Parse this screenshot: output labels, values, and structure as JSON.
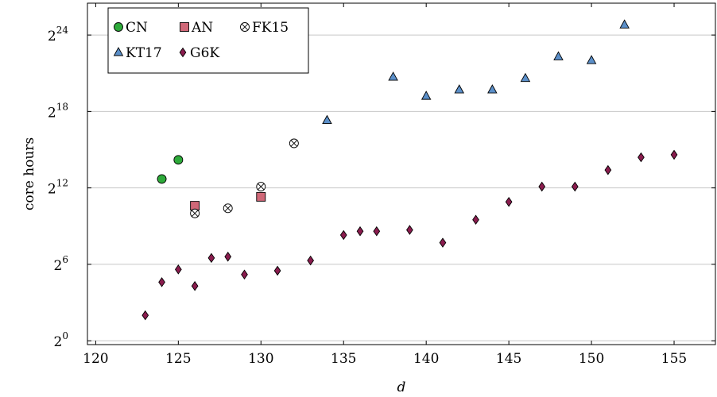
{
  "chart_data": {
    "type": "scatter",
    "title": "",
    "xlabel": "d",
    "ylabel": "core hours",
    "x_scale": "linear",
    "y_scale": "log2",
    "xlim": [
      119.5,
      157.5
    ],
    "ylim_log2": [
      -0.3,
      26.5
    ],
    "x_ticks": [
      120,
      125,
      130,
      135,
      140,
      145,
      150,
      155
    ],
    "y_ticks": [
      {
        "base": "2",
        "exp": "0",
        "value_log2": 0
      },
      {
        "base": "2",
        "exp": "6",
        "value_log2": 6
      },
      {
        "base": "2",
        "exp": "12",
        "value_log2": 12
      },
      {
        "base": "2",
        "exp": "18",
        "value_log2": 18
      },
      {
        "base": "2",
        "exp": "24",
        "value_log2": 24
      }
    ],
    "grid": "horizontal",
    "legend_position": "top-left",
    "series": [
      {
        "name": "CN",
        "marker": "circle",
        "fill": "#2eaa3a",
        "points": [
          {
            "x": 124,
            "y_log2": 12.7
          },
          {
            "x": 125,
            "y_log2": 14.2
          }
        ]
      },
      {
        "name": "AN",
        "marker": "square",
        "fill": "#d06878",
        "points": [
          {
            "x": 126,
            "y_log2": 10.6
          },
          {
            "x": 130,
            "y_log2": 11.3
          }
        ]
      },
      {
        "name": "FK15",
        "marker": "circled-x",
        "fill": "#ffffff",
        "points": [
          {
            "x": 126,
            "y_log2": 10.0
          },
          {
            "x": 128,
            "y_log2": 10.4
          },
          {
            "x": 130,
            "y_log2": 12.1
          },
          {
            "x": 132,
            "y_log2": 15.5
          }
        ]
      },
      {
        "name": "KT17",
        "marker": "triangle",
        "fill": "#5b8fc9",
        "points": [
          {
            "x": 134,
            "y_log2": 17.3
          },
          {
            "x": 138,
            "y_log2": 20.7
          },
          {
            "x": 140,
            "y_log2": 19.2
          },
          {
            "x": 142,
            "y_log2": 19.7
          },
          {
            "x": 144,
            "y_log2": 19.7
          },
          {
            "x": 146,
            "y_log2": 20.6
          },
          {
            "x": 148,
            "y_log2": 22.3
          },
          {
            "x": 150,
            "y_log2": 22.0
          },
          {
            "x": 152,
            "y_log2": 24.8
          }
        ]
      },
      {
        "name": "G6K",
        "marker": "diamond",
        "fill": "#8a1c4e",
        "points": [
          {
            "x": 123,
            "y_log2": 2.0
          },
          {
            "x": 124,
            "y_log2": 4.6
          },
          {
            "x": 125,
            "y_log2": 5.6
          },
          {
            "x": 126,
            "y_log2": 4.3
          },
          {
            "x": 127,
            "y_log2": 6.5
          },
          {
            "x": 128,
            "y_log2": 6.6
          },
          {
            "x": 129,
            "y_log2": 5.2
          },
          {
            "x": 131,
            "y_log2": 5.5
          },
          {
            "x": 133,
            "y_log2": 6.3
          },
          {
            "x": 135,
            "y_log2": 8.3
          },
          {
            "x": 136,
            "y_log2": 8.6
          },
          {
            "x": 137,
            "y_log2": 8.6
          },
          {
            "x": 139,
            "y_log2": 8.7
          },
          {
            "x": 141,
            "y_log2": 7.7
          },
          {
            "x": 143,
            "y_log2": 9.5
          },
          {
            "x": 145,
            "y_log2": 10.9
          },
          {
            "x": 147,
            "y_log2": 12.1
          },
          {
            "x": 149,
            "y_log2": 12.1
          },
          {
            "x": 151,
            "y_log2": 13.4
          },
          {
            "x": 153,
            "y_log2": 14.4
          },
          {
            "x": 155,
            "y_log2": 14.6
          }
        ]
      }
    ]
  }
}
